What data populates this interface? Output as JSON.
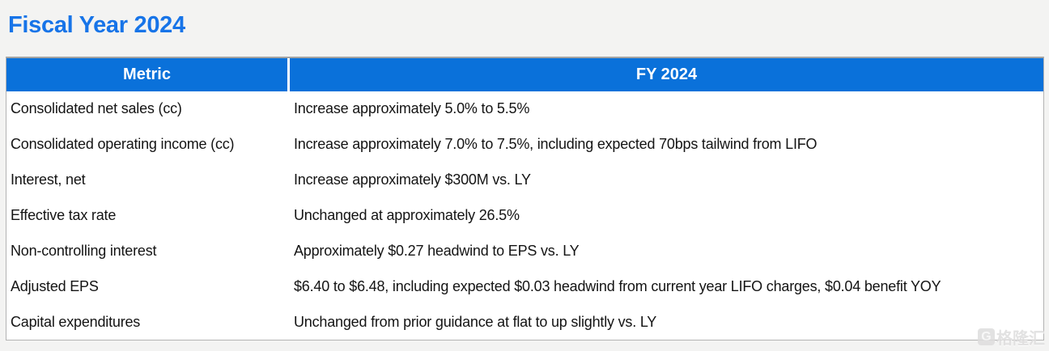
{
  "page": {
    "title": "Fiscal Year 2024"
  },
  "table": {
    "headers": [
      "Metric",
      "FY 2024"
    ],
    "rows": [
      {
        "metric": "Consolidated net sales (cc)",
        "value": "Increase approximately 5.0% to 5.5%"
      },
      {
        "metric": "Consolidated operating income (cc)",
        "value": "Increase approximately 7.0% to 7.5%, including expected 70bps tailwind from LIFO"
      },
      {
        "metric": "Interest, net",
        "value": "Increase approximately $300M vs. LY"
      },
      {
        "metric": "Effective tax rate",
        "value": "Unchanged at approximately 26.5%"
      },
      {
        "metric": "Non-controlling interest",
        "value": "Approximately $0.27 headwind to EPS vs. LY"
      },
      {
        "metric": "Adjusted EPS",
        "value": "$6.40 to $6.48, including expected $0.03 headwind from current year LIFO charges, $0.04 benefit YOY"
      },
      {
        "metric": "Capital expenditures",
        "value": "Unchanged from prior guidance at flat to up slightly vs. LY"
      }
    ]
  },
  "watermark": {
    "icon_letter": "G",
    "text": "格隆汇"
  },
  "colors": {
    "title_blue": "#1774e8",
    "header_bg": "#0a71da",
    "header_text": "#ffffff",
    "body_text": "#141414",
    "page_bg": "#f3f3f2",
    "table_bg": "#ffffff",
    "border": "#b3b3b3",
    "watermark_gray": "#dedddd"
  }
}
